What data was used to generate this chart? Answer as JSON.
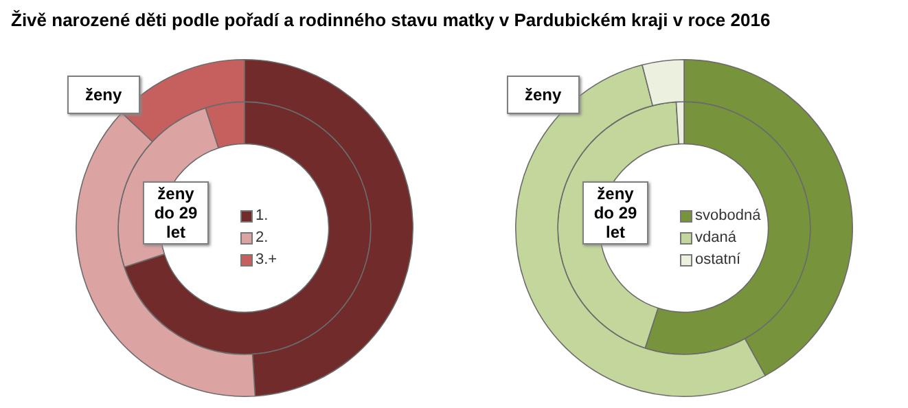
{
  "chart_data": [
    {
      "type": "donut",
      "title": "Živě narozené děti podle pořadí a rodinného stavu matky v Pardubickém kraji v roce 2016",
      "categories": [
        "1.",
        "2.",
        "3.+"
      ],
      "colors": [
        "#722b2b",
        "#dca3a3",
        "#c6605e"
      ],
      "legend": "center",
      "series": [
        {
          "name": "ženy",
          "values": [
            49,
            38,
            13
          ]
        },
        {
          "name": "ženy do 29 let",
          "values": [
            70,
            25,
            5
          ]
        }
      ]
    },
    {
      "type": "donut",
      "categories": [
        "svobodná",
        "vdaná",
        "ostatní"
      ],
      "colors": [
        "#77933c",
        "#c3d69b",
        "#ebf1de"
      ],
      "legend": "center",
      "series": [
        {
          "name": "ženy",
          "values": [
            42,
            54,
            4
          ]
        },
        {
          "name": "ženy do 29 let",
          "values": [
            55,
            44,
            1
          ]
        }
      ]
    }
  ]
}
